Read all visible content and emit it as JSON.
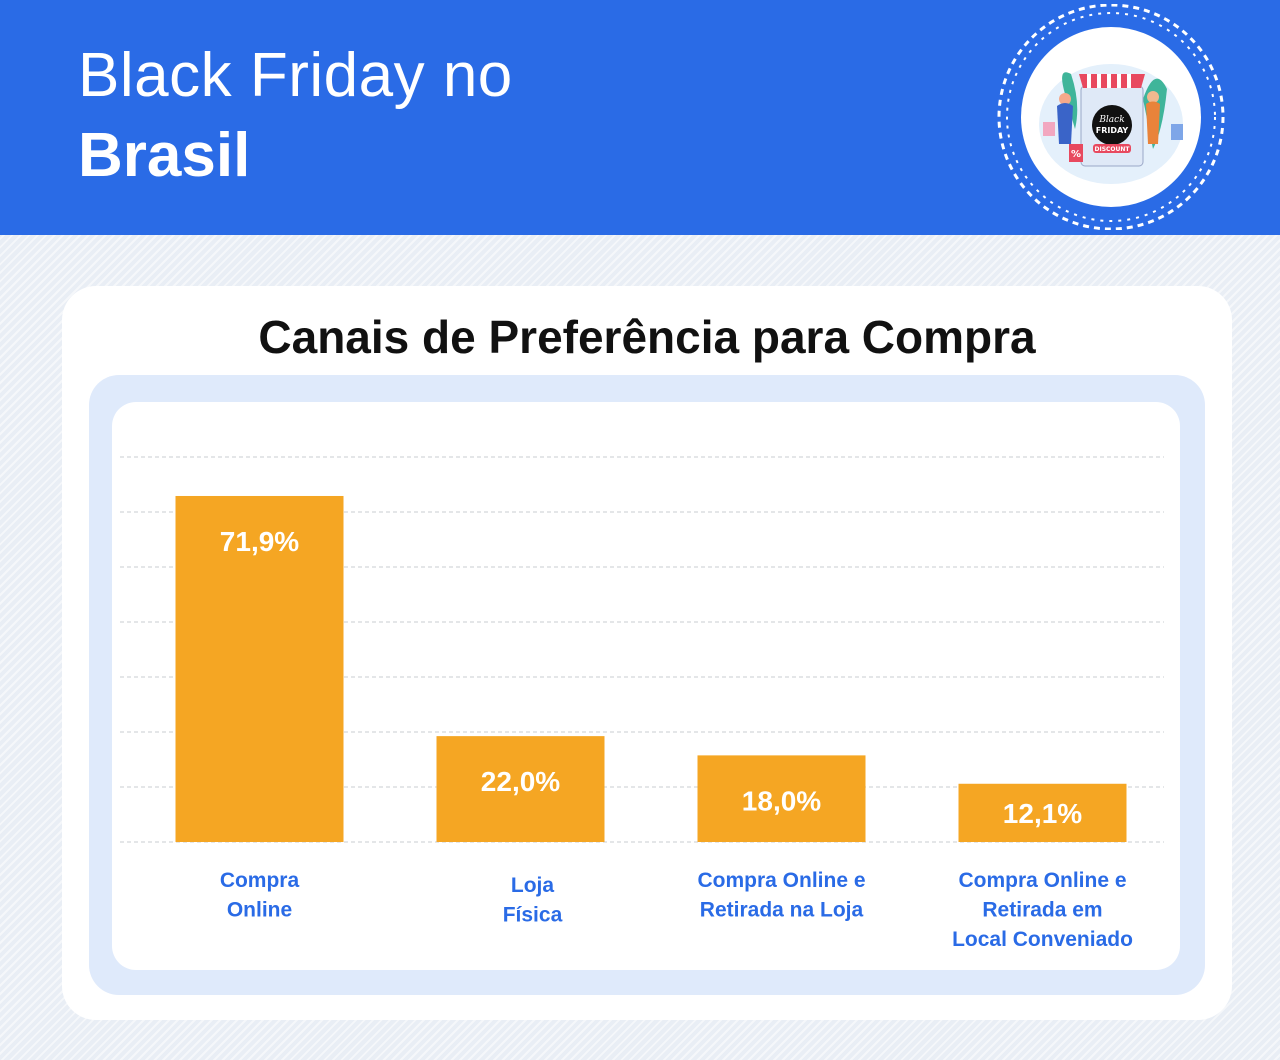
{
  "header": {
    "title_light": "Black Friday no",
    "title_bold": "Brasil",
    "badge": {
      "icon": "black-friday-store-illustration",
      "sign_line1": "Black",
      "sign_line2": "FRIDAY",
      "sign_discount": "DISCOUNT",
      "sign_percent": "%"
    }
  },
  "colors": {
    "header_bg": "#2a6be6",
    "bar": "#f5a623",
    "label": "#2a6be6",
    "chart_frame": "#dfeafb"
  },
  "chart_data": {
    "type": "bar",
    "title": "Canais de Preferência para Compra",
    "categories": [
      [
        "Compra",
        "Online"
      ],
      [
        "Loja",
        "Física"
      ],
      [
        "Compra Online e",
        "Retirada na Loja"
      ],
      [
        "Compra Online e",
        "Retirada em",
        "Local Conveniado"
      ]
    ],
    "values": [
      71.9,
      22.0,
      18.0,
      12.1
    ],
    "value_labels": [
      "71,9%",
      "22,0%",
      "18,0%",
      "12,1%"
    ],
    "ylim": [
      0,
      80
    ],
    "grid": true,
    "xlabel": "",
    "ylabel": ""
  }
}
